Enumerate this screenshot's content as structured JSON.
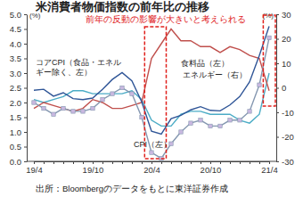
{
  "chart_data": {
    "type": "line",
    "title": "米消費者物価指数の前年比の推移",
    "categories": [
      "19/4",
      null,
      null,
      null,
      null,
      null,
      "19/10",
      null,
      null,
      null,
      null,
      null,
      "20/4",
      null,
      null,
      null,
      null,
      null,
      "20/10",
      null,
      null,
      null,
      null,
      null,
      "21/4"
    ],
    "ylabel": "(%)",
    "y2label": "(%)",
    "ylim": [
      0,
      5
    ],
    "yticks": [
      {
        "value": 5,
        "label": "5.0"
      },
      {
        "value": 4.5,
        "label": "4.5"
      },
      {
        "value": 4,
        "label": "4.0"
      },
      {
        "value": 3.5,
        "label": "3.5"
      },
      {
        "value": 3,
        "label": "3.0"
      },
      {
        "value": 2.5,
        "label": "2.5"
      },
      {
        "value": 2,
        "label": "2.0"
      },
      {
        "value": 1.5,
        "label": "1.5"
      },
      {
        "value": 1,
        "label": "1.0"
      },
      {
        "value": 0.5,
        "label": "0.5"
      },
      {
        "value": 0,
        "label": "0.0"
      }
    ],
    "y2lim": [
      -30,
      30
    ],
    "y2ticks": [
      30,
      20,
      10,
      0,
      -10,
      -20,
      -30
    ],
    "grid": false,
    "annotations": [
      "前年の反動の影響が大きいと考えられる"
    ],
    "source": "出所：Bloombergのデータをもとに東洋証券作成",
    "series": [
      {
        "name": "コアCPI（食品・エネルギー除く、左）",
        "color": "#4bacc6",
        "values": [
          2.1,
          2.0,
          2.1,
          2.2,
          2.4,
          2.4,
          2.3,
          2.3,
          2.3,
          2.3,
          2.4,
          2.1,
          1.4,
          1.2,
          1.2,
          1.6,
          1.7,
          1.7,
          1.6,
          1.6,
          1.6,
          1.4,
          1.3,
          1.6,
          3.0
        ]
      },
      {
        "name": "食料品（左）",
        "color": "#c0504d",
        "values": [
          1.8,
          2.0,
          1.9,
          1.8,
          1.7,
          1.8,
          2.1,
          2.0,
          1.8,
          1.8,
          1.9,
          2.0,
          3.5,
          4.0,
          4.5,
          4.1,
          4.1,
          3.9,
          3.9,
          3.7,
          3.9,
          3.8,
          3.6,
          3.5,
          2.4
        ]
      },
      {
        "name": "エネルギー（右）",
        "color": "#2f5597",
        "axis": "y2",
        "values": [
          -1.0,
          -0.6,
          -3.4,
          -2.0,
          -4.4,
          -4.8,
          -4.2,
          -0.6,
          3.4,
          6.2,
          2.8,
          -5.7,
          -17.7,
          -18.9,
          -12.6,
          -11.2,
          -9.0,
          -7.7,
          -9.2,
          -9.4,
          -7.0,
          -3.6,
          2.4,
          13.2,
          25.1
        ]
      },
      {
        "name": "CPI（左）",
        "color": "#8497b0",
        "marker": "square",
        "values": [
          2.0,
          1.8,
          1.6,
          1.8,
          1.7,
          1.7,
          1.8,
          2.1,
          2.3,
          2.5,
          2.3,
          1.5,
          0.3,
          0.1,
          0.6,
          1.0,
          1.3,
          1.4,
          1.2,
          1.2,
          1.4,
          1.4,
          1.7,
          2.6,
          4.2
        ]
      }
    ]
  }
}
